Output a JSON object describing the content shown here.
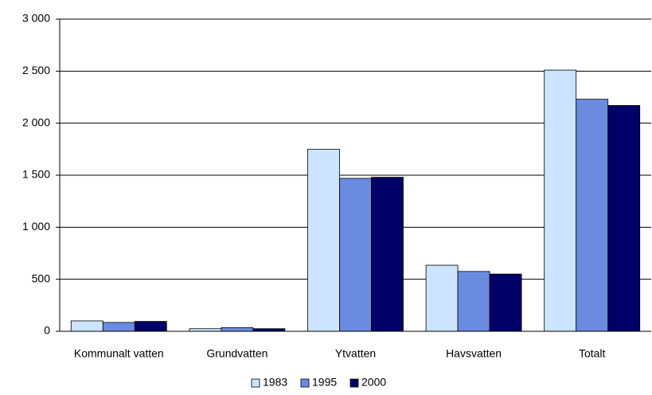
{
  "chart_data": {
    "type": "bar",
    "categories": [
      "Kommunalt vatten",
      "Grundvatten",
      "Ytvatten",
      "Havsvatten",
      "Totalt"
    ],
    "series": [
      {
        "name": "1983",
        "color": "#cce4ff",
        "values": [
          100,
          25,
          1750,
          635,
          2510
        ]
      },
      {
        "name": "1995",
        "color": "#6b8be0",
        "values": [
          85,
          35,
          1470,
          575,
          2230
        ]
      },
      {
        "name": "2000",
        "color": "#000066",
        "values": [
          95,
          25,
          1480,
          550,
          2170
        ]
      }
    ],
    "ylim": [
      0,
      3000
    ],
    "yticks": [
      0,
      500,
      {
        "value": 1000,
        "label": "1 000"
      },
      {
        "value": 1500,
        "label": "1 500"
      },
      {
        "value": 2000,
        "label": "2 000"
      },
      {
        "value": 2500,
        "label": "2 500"
      },
      {
        "value": 3000,
        "label": "3 000"
      }
    ],
    "grid": true,
    "legend": "bottom"
  }
}
